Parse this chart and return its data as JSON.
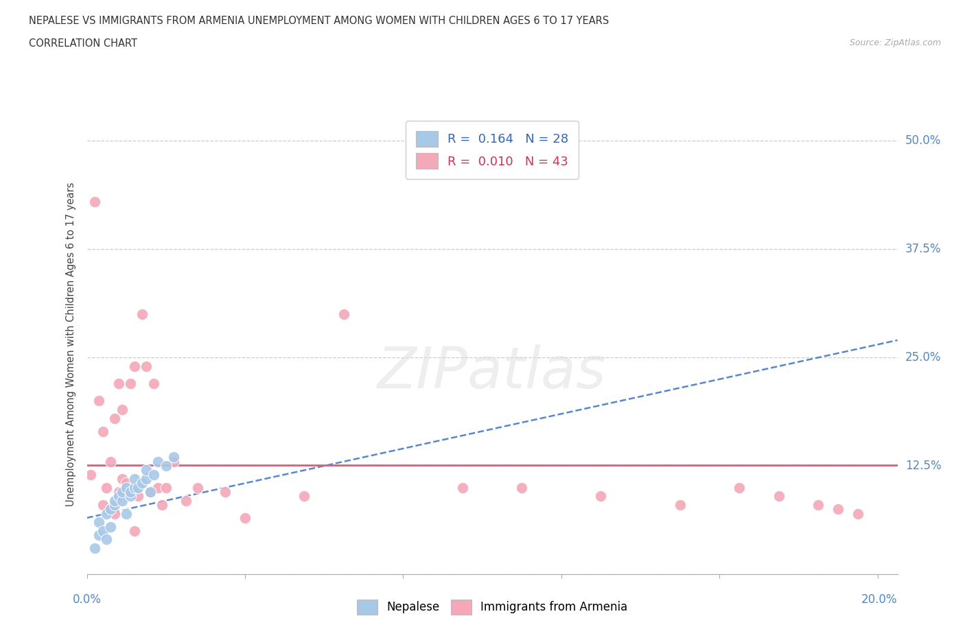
{
  "title_line1": "NEPALESE VS IMMIGRANTS FROM ARMENIA UNEMPLOYMENT AMONG WOMEN WITH CHILDREN AGES 6 TO 17 YEARS",
  "title_line2": "CORRELATION CHART",
  "source_text": "Source: ZipAtlas.com",
  "ylabel": "Unemployment Among Women with Children Ages 6 to 17 years",
  "xlim": [
    0.0,
    0.205
  ],
  "ylim": [
    0.0,
    0.53
  ],
  "ytick_vals": [
    0.0,
    0.125,
    0.25,
    0.375,
    0.5
  ],
  "ytick_labels": [
    "",
    "12.5%",
    "25.0%",
    "37.5%",
    "50.0%"
  ],
  "xtick_vals": [
    0.0,
    0.04,
    0.08,
    0.12,
    0.16,
    0.2
  ],
  "nepalese_R": 0.164,
  "nepalese_N": 28,
  "armenia_R": 0.01,
  "armenia_N": 43,
  "nepalese_color": "#a8c8e8",
  "armenia_color": "#f4a8b8",
  "trend_nepalese_color": "#5588cc",
  "trend_armenia_color": "#ee5577",
  "background_color": "#ffffff",
  "grid_color": "#cccccc",
  "nepalese_x": [
    0.002,
    0.003,
    0.003,
    0.004,
    0.005,
    0.005,
    0.006,
    0.006,
    0.007,
    0.007,
    0.008,
    0.009,
    0.009,
    0.01,
    0.01,
    0.011,
    0.011,
    0.012,
    0.012,
    0.013,
    0.014,
    0.015,
    0.015,
    0.016,
    0.017,
    0.018,
    0.02,
    0.022
  ],
  "nepalese_y": [
    0.03,
    0.045,
    0.06,
    0.05,
    0.04,
    0.07,
    0.055,
    0.075,
    0.08,
    0.085,
    0.09,
    0.085,
    0.095,
    0.1,
    0.07,
    0.09,
    0.095,
    0.1,
    0.11,
    0.1,
    0.105,
    0.11,
    0.12,
    0.095,
    0.115,
    0.13,
    0.125,
    0.135
  ],
  "armenia_x": [
    0.001,
    0.002,
    0.003,
    0.004,
    0.004,
    0.005,
    0.006,
    0.006,
    0.007,
    0.007,
    0.008,
    0.008,
    0.009,
    0.009,
    0.01,
    0.011,
    0.011,
    0.012,
    0.012,
    0.013,
    0.014,
    0.015,
    0.016,
    0.017,
    0.018,
    0.019,
    0.02,
    0.022,
    0.025,
    0.028,
    0.035,
    0.04,
    0.055,
    0.065,
    0.095,
    0.11,
    0.13,
    0.15,
    0.165,
    0.175,
    0.185,
    0.19,
    0.195
  ],
  "armenia_y": [
    0.115,
    0.43,
    0.2,
    0.08,
    0.165,
    0.1,
    0.13,
    0.075,
    0.18,
    0.07,
    0.22,
    0.095,
    0.11,
    0.19,
    0.105,
    0.1,
    0.22,
    0.05,
    0.24,
    0.09,
    0.3,
    0.24,
    0.095,
    0.22,
    0.1,
    0.08,
    0.1,
    0.13,
    0.085,
    0.1,
    0.095,
    0.065,
    0.09,
    0.3,
    0.1,
    0.1,
    0.09,
    0.08,
    0.1,
    0.09,
    0.08,
    0.075,
    0.07
  ],
  "trend_nepalese_x0": 0.0,
  "trend_nepalese_y0": 0.065,
  "trend_nepalese_x1": 0.205,
  "trend_nepalese_y1": 0.27,
  "trend_armenia_x0": 0.0,
  "trend_armenia_y0": 0.126,
  "trend_armenia_x1": 0.205,
  "trend_armenia_y1": 0.126
}
